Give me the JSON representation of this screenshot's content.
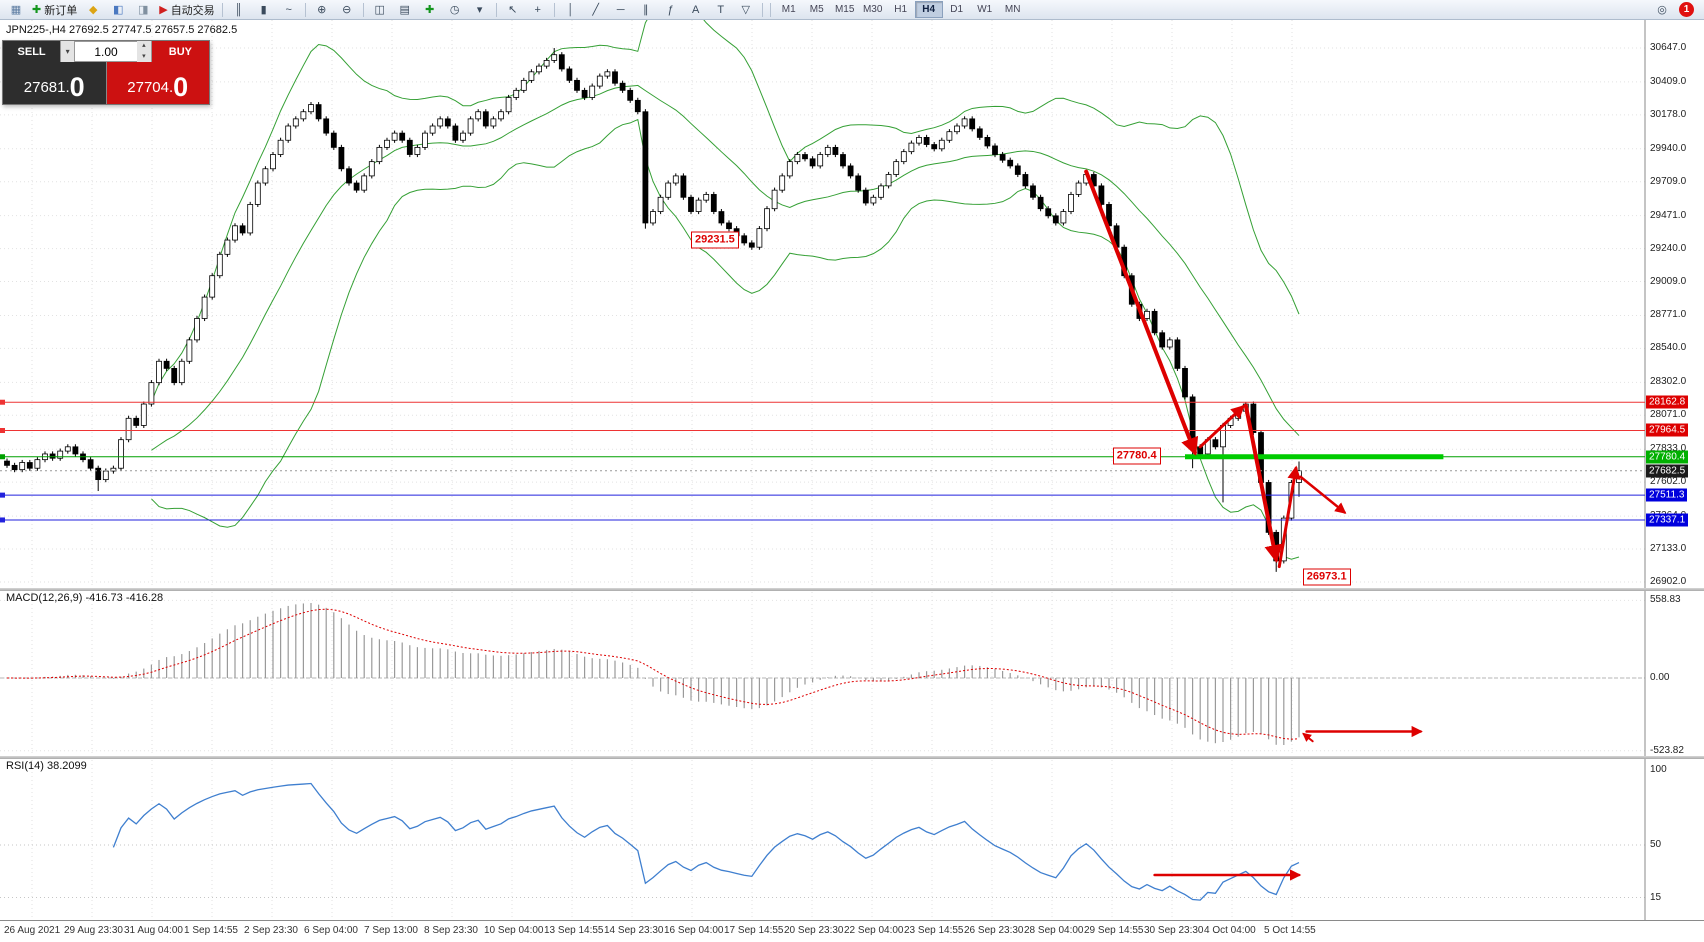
{
  "toolbar": {
    "buttons": [
      {
        "name": "charts-window-icon",
        "glyph": "▦",
        "color": "#5a7aa0"
      },
      {
        "name": "new-order-button",
        "glyph": "✚",
        "label": "新订单",
        "color": "#14961e"
      },
      {
        "name": "market-watch-icon",
        "glyph": "◆",
        "color": "#dca414"
      },
      {
        "name": "data-window-icon",
        "glyph": "◧",
        "color": "#4a78c0"
      },
      {
        "name": "terminal-icon",
        "glyph": "◨",
        "color": "#8090a0"
      },
      {
        "name": "autotrading-button",
        "glyph": "▶",
        "label": "自动交易",
        "color": "#d02020"
      },
      {
        "sep": true
      },
      {
        "name": "bars-chart-icon",
        "glyph": "║",
        "color": "#3a4a5c"
      },
      {
        "name": "candles-chart-icon",
        "glyph": "▮",
        "color": "#3a4a5c"
      },
      {
        "name": "line-chart-icon",
        "glyph": "~",
        "color": "#3a4a5c"
      },
      {
        "sep": true
      },
      {
        "name": "zoom-in-icon",
        "glyph": "⊕",
        "color": "#3a4a5c"
      },
      {
        "name": "zoom-out-icon",
        "glyph": "⊖",
        "color": "#3a4a5c"
      },
      {
        "sep": true
      },
      {
        "name": "tile-windows-icon",
        "glyph": "◫",
        "color": "#3a4a5c"
      },
      {
        "name": "arrange-windows-icon",
        "glyph": "▤",
        "color": "#3a4a5c"
      },
      {
        "name": "add-indicator-icon",
        "glyph": "✚",
        "color": "#14961e"
      },
      {
        "name": "period-clock-icon",
        "glyph": "◷",
        "color": "#3a4a5c"
      },
      {
        "name": "templates-dropdown-icon",
        "glyph": "▾",
        "color": "#3a4a5c"
      },
      {
        "sep": true
      },
      {
        "name": "cursor-icon",
        "glyph": "↖",
        "color": "#3a4a5c"
      },
      {
        "name": "crosshair-icon",
        "glyph": "+",
        "color": "#3a4a5c"
      },
      {
        "sep": true
      },
      {
        "name": "vertical-line-tool-icon",
        "glyph": "│",
        "color": "#3a4a5c"
      },
      {
        "name": "trendline-tool-icon",
        "glyph": "╱",
        "color": "#3a4a5c"
      },
      {
        "name": "horizontal-line-tool-icon",
        "glyph": "─",
        "color": "#3a4a5c"
      },
      {
        "name": "channel-tool-icon",
        "glyph": "∥",
        "color": "#3a4a5c"
      },
      {
        "name": "fibonacci-tool-icon",
        "glyph": "ƒ",
        "color": "#3a4a5c"
      },
      {
        "name": "text-tool-icon",
        "glyph": "A",
        "color": "#3a4a5c"
      },
      {
        "name": "label-tool-icon",
        "glyph": "T",
        "color": "#3a4a5c"
      },
      {
        "name": "shapes-tool-icon",
        "glyph": "▽",
        "color": "#3a4a5c"
      },
      {
        "sep": true
      }
    ],
    "timeframes": [
      "M1",
      "M5",
      "M15",
      "M30",
      "H1",
      "H4",
      "D1",
      "W1",
      "MN"
    ],
    "active_timeframe": "H4",
    "right_buttons": [
      {
        "name": "search-icon",
        "glyph": "◎"
      }
    ],
    "badge_count": "1"
  },
  "symbol_header": {
    "text": "JPN225-,H4  27692.5 27747.5 27657.5 27682.5"
  },
  "trade_panel": {
    "sell_label": "SELL",
    "buy_label": "BUY",
    "volume": "1.00",
    "dropdown_glyph": "▾",
    "spinner_up": "▴",
    "spinner_down": "▾",
    "sell_price": {
      "main": "27681.",
      "frac": "0"
    },
    "buy_price": {
      "main": "27704.",
      "frac": "0"
    }
  },
  "macd": {
    "title_text": "MACD(12,26,9) -416.73 -416.28",
    "scale": [
      {
        "text": "558.83",
        "v": 558.83
      },
      {
        "text": "0.00",
        "v": 0
      },
      {
        "text": "-523.82",
        "v": -523.82
      }
    ]
  },
  "rsi": {
    "title_text": "RSI(14) 38.2099",
    "levels": [
      50,
      15
    ],
    "scale": [
      {
        "text": "100",
        "v": 100
      },
      {
        "text": "50",
        "v": 50
      },
      {
        "text": "15",
        "v": 15
      }
    ]
  },
  "price_scale_labels": [
    "30647.0",
    "30409.0",
    "30178.0",
    "29940.0",
    "29709.0",
    "29471.0",
    "29240.0",
    "29009.0",
    "28771.0",
    "28540.0",
    "28302.0",
    "28071.0",
    "27833.0",
    "27602.0",
    "27364.0",
    "27133.0",
    "26902.0"
  ],
  "scale_tags": [
    {
      "text": "28162.8",
      "price": 28162.8,
      "bg": "#dd0000"
    },
    {
      "text": "27964.5",
      "price": 27964.5,
      "bg": "#dd0000"
    },
    {
      "text": "27780.4",
      "price": 27780.4,
      "bg": "#00b000"
    },
    {
      "text": "27682.5",
      "price": 27682.5,
      "bg": "#1a1a1a"
    },
    {
      "text": "27511.3",
      "price": 27511.3,
      "bg": "#0000dd"
    },
    {
      "text": "27337.1",
      "price": 27337.1,
      "bg": "#0000dd"
    }
  ],
  "time_axis": [
    "26 Aug 2021",
    "29 Aug 23:30",
    "31 Aug 04:00",
    "1 Sep 14:55",
    "2 Sep 23:30",
    "6 Sep 04:00",
    "7 Sep 13:00",
    "8 Sep 23:30",
    "10 Sep 04:00",
    "13 Sep 14:55",
    "14 Sep 23:30",
    "16 Sep 04:00",
    "17 Sep 14:55",
    "20 Sep 23:30",
    "22 Sep 04:00",
    "23 Sep 14:55",
    "26 Sep 23:30",
    "28 Sep 04:00",
    "29 Sep 14:55",
    "30 Sep 23:30",
    "4 Oct 04:00",
    "5 Oct 14:55"
  ],
  "chart_data": {
    "type": "candlestick",
    "symbol": "JPN225-",
    "timeframe": "H4",
    "current_ohlc": {
      "open": 27692.5,
      "high": 27747.5,
      "low": 27657.5,
      "close": 27682.5
    },
    "y_axis_range": [
      26902.0,
      30647.0
    ],
    "first_open": 27750,
    "closes": [
      27720,
      27690,
      27740,
      27700,
      27760,
      27800,
      27770,
      27820,
      27850,
      27800,
      27760,
      27700,
      27620,
      27680,
      27700,
      27900,
      28050,
      28000,
      28150,
      28300,
      28450,
      28400,
      28300,
      28450,
      28600,
      28750,
      28900,
      29050,
      29200,
      29300,
      29400,
      29350,
      29550,
      29700,
      29800,
      29900,
      30000,
      30100,
      30150,
      30200,
      30250,
      30150,
      30050,
      29950,
      29800,
      29700,
      29650,
      29750,
      29850,
      29950,
      30000,
      30050,
      30000,
      29900,
      29950,
      30050,
      30100,
      30150,
      30100,
      30000,
      30050,
      30150,
      30200,
      30100,
      30150,
      30200,
      30300,
      30350,
      30420,
      30480,
      30520,
      30560,
      30600,
      30500,
      30420,
      30350,
      30300,
      30380,
      30450,
      30480,
      30400,
      30350,
      30280,
      30200,
      29420,
      29500,
      29600,
      29700,
      29750,
      29600,
      29500,
      29580,
      29620,
      29500,
      29420,
      29380,
      29330,
      29280,
      29250,
      29380,
      29520,
      29650,
      29750,
      29850,
      29900,
      29870,
      29820,
      29900,
      29950,
      29900,
      29820,
      29750,
      29650,
      29560,
      29600,
      29680,
      29760,
      29850,
      29920,
      29980,
      30020,
      29970,
      29940,
      30000,
      30060,
      30100,
      30150,
      30080,
      30020,
      29960,
      29900,
      29860,
      29820,
      29760,
      29680,
      29600,
      29520,
      29470,
      29420,
      29500,
      29620,
      29700,
      29760,
      29680,
      29550,
      29400,
      29250,
      29050,
      28850,
      28750,
      28800,
      28650,
      28550,
      28600,
      28400,
      28200,
      27850,
      27800,
      27900,
      27850,
      28000,
      28050,
      28100,
      28150,
      27950,
      27600,
      27250,
      27050,
      27350,
      27600,
      27682.5
    ],
    "wick_overrides": {
      "12": {
        "low": 27540
      },
      "72": {
        "high": 30647.0
      },
      "84": {
        "low": 29380
      },
      "98": {
        "low": 29231.5
      },
      "156": {
        "low": 27700
      },
      "160": {
        "low": 27460
      },
      "163": {
        "high": 28162.8
      },
      "167": {
        "low": 26973.1
      },
      "170": {
        "high": 27747.5,
        "low": 27500
      }
    },
    "indicators": {
      "bollinger": {
        "period": 20,
        "deviation": 2
      },
      "macd": {
        "fast": 12,
        "slow": 26,
        "signal": 9
      },
      "rsi": {
        "period": 14
      }
    },
    "levels": [
      {
        "price": 28162.8,
        "color": "#ee3333",
        "width": 1
      },
      {
        "price": 27964.5,
        "color": "#ee3333",
        "width": 1
      },
      {
        "price": 27780.4,
        "color": "#00a000",
        "width": 1
      },
      {
        "price": 27511.3,
        "color": "#2222dd",
        "width": 1
      },
      {
        "price": 27337.1,
        "color": "#2222dd",
        "width": 1
      }
    ],
    "support_segment": {
      "price": 27780.4,
      "from_index": 155,
      "to_index": 189,
      "color": "#00cc00",
      "width": 5
    },
    "current_price_line": {
      "price": 27682.5
    },
    "annotations": {
      "boxes": [
        {
          "text": "29231.5",
          "index": 90,
          "price": 29300
        },
        {
          "text": "27780.4",
          "index": 145.5,
          "price": 27785
        },
        {
          "text": "26973.1",
          "index": 170.5,
          "price": 26935
        }
      ],
      "arrows": [
        {
          "pane": "price",
          "from": [
            142,
            29780
          ],
          "to": [
            156.3,
            27810
          ],
          "w": 4
        },
        {
          "pane": "price",
          "from": [
            157,
            27850
          ],
          "to": [
            162.6,
            28130
          ],
          "w": 3
        },
        {
          "pane": "price",
          "from": [
            163,
            28140
          ],
          "to": [
            167,
            27060
          ],
          "w": 4
        },
        {
          "pane": "price",
          "from": [
            167.4,
            27010
          ],
          "to": [
            169.6,
            27700
          ],
          "w": 3
        },
        {
          "pane": "price",
          "from": [
            170.2,
            27640
          ],
          "to": [
            176,
            27390
          ],
          "w": 2.5
        },
        {
          "pane": "macd",
          "from": [
            171,
            -385
          ],
          "to": [
            186,
            -385
          ],
          "w": 2.5
        },
        {
          "pane": "macd",
          "from": [
            171.8,
            -455
          ],
          "to": [
            170.6,
            -402
          ],
          "w": 2
        },
        {
          "pane": "rsi",
          "from": [
            151,
            30
          ],
          "to": [
            170,
            30
          ],
          "w": 2.5
        }
      ]
    }
  }
}
